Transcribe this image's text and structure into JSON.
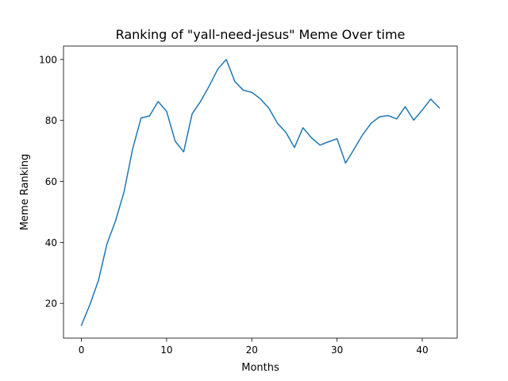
{
  "chart_data": {
    "type": "line",
    "title": "Ranking of \"yall-need-jesus\" Meme Over time",
    "xlabel": "Months",
    "ylabel": "Meme Ranking",
    "xlim": [
      -2.1,
      44.1
    ],
    "ylim": [
      8.6,
      104.4
    ],
    "xticks": [
      0,
      10,
      20,
      30,
      40
    ],
    "yticks": [
      20,
      40,
      60,
      80,
      100
    ],
    "grid": false,
    "line_color": "#1f77b4",
    "series": [
      {
        "x": [
          0,
          1,
          2,
          3,
          4,
          5,
          6,
          7,
          8,
          9,
          10,
          11,
          12,
          13,
          14,
          15,
          16,
          17,
          18,
          19,
          20,
          21,
          22,
          23,
          24,
          25,
          26,
          27,
          28,
          29,
          30,
          31,
          32,
          33,
          34,
          35,
          36,
          37,
          38,
          39,
          40,
          41,
          42
        ],
        "values": [
          12.8,
          19.6,
          27.5,
          39.5,
          47.0,
          56.5,
          70.5,
          80.8,
          81.5,
          86.2,
          83.0,
          73.2,
          69.7,
          82.2,
          86.3,
          91.3,
          96.8,
          100.0,
          92.8,
          89.9,
          89.2,
          87.1,
          84.0,
          79.1,
          76.1,
          71.1,
          77.6,
          74.3,
          71.9,
          73.0,
          74.0,
          66.0,
          70.6,
          75.3,
          79.1,
          81.2,
          81.6,
          80.5,
          84.5,
          80.1,
          83.4,
          87.0,
          84.1
        ]
      }
    ]
  }
}
